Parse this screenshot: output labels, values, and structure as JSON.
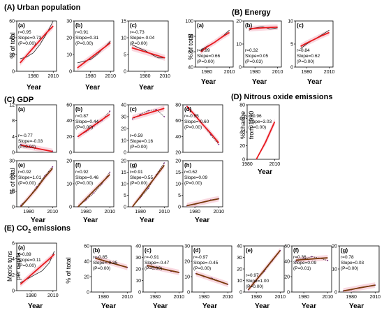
{
  "sections": {
    "A": {
      "title": "(A) Urban population"
    },
    "B": {
      "title": "(B) Energy"
    },
    "C": {
      "title": "(C) GDP"
    },
    "D": {
      "title": "(D) Nitrous oxide emissions"
    },
    "E": {
      "title_prefix": "(E) CO",
      "title_sub": "2",
      "title_suffix": " emissions"
    }
  },
  "axis_titles": {
    "year": "Year",
    "pct_total": "% of total",
    "pct_change_line1": "% change",
    "pct_change_line2": "from 1990",
    "metric_line1": "Metric tons",
    "metric_line2": "per capita"
  },
  "colors": {
    "fit": "#e8191d",
    "fit_dark": "#7a3a0c",
    "observed": "#222222",
    "band": "#f4b8c6",
    "points": "#7a2a8a"
  },
  "chart_data": [
    {
      "id": "A-a",
      "panel": "(a)",
      "type": "line",
      "x": [
        1960,
        1970,
        1980,
        1990,
        2000,
        2010
      ],
      "y_observed": [
        15,
        17,
        22,
        32,
        45,
        60
      ],
      "fit": [
        10,
        19,
        28,
        37,
        46,
        54
      ],
      "ylim": [
        0,
        60
      ],
      "yticks": [
        0,
        20,
        40,
        60
      ],
      "xticks": [
        1980,
        2010
      ],
      "stats": {
        "r": "r=0.95",
        "slope": "Slope=0.73",
        "p": "(P=0.00)"
      }
    },
    {
      "id": "A-b",
      "panel": "(b)",
      "type": "line",
      "x": [
        1960,
        1970,
        1980,
        1990,
        2000,
        2010
      ],
      "y_observed": [
        5,
        6,
        7,
        10,
        14,
        18
      ],
      "fit": [
        2,
        5,
        8,
        11,
        14,
        17
      ],
      "ylim": [
        0,
        30
      ],
      "yticks": [
        0,
        10,
        20,
        30
      ],
      "xticks": [
        1980,
        2010
      ],
      "stats": {
        "r": "r=0.91",
        "slope": "Slope=0.31",
        "p": "(P=0.00)"
      }
    },
    {
      "id": "A-c",
      "panel": "(c)",
      "type": "line",
      "x": [
        1960,
        1970,
        1980,
        1990,
        2000,
        2010
      ],
      "y_observed": [
        8,
        7,
        6.2,
        5,
        4,
        4
      ],
      "fit": [
        7,
        6.4,
        5.8,
        5.2,
        4.6,
        4
      ],
      "ylim": [
        0,
        15
      ],
      "yticks": [
        0,
        5,
        10,
        15
      ],
      "xticks": [
        1980,
        2010
      ],
      "stats": {
        "r": "r=-0.73",
        "slope": "Slope=-0.04",
        "p": "(P=0.00)"
      }
    },
    {
      "id": "B-a",
      "panel": "(a)",
      "type": "line",
      "x": [
        1972,
        1980,
        1990,
        2000,
        2010
      ],
      "y_observed": [
        62,
        67,
        72,
        79,
        88
      ],
      "fit": [
        60,
        66,
        72,
        79,
        85
      ],
      "ylim": [
        40,
        100
      ],
      "yticks": [
        40,
        60,
        80,
        100
      ],
      "xticks": [
        1980,
        2010
      ],
      "stats": {
        "r": "r=0.99",
        "slope": "Slope=0.66",
        "p": "(P=0.00)"
      }
    },
    {
      "id": "B-b",
      "panel": "(b)",
      "type": "line",
      "x": [
        1972,
        1980,
        1990,
        2000,
        2010
      ],
      "y_observed": [
        16,
        17,
        17.5,
        16.5,
        17
      ],
      "fit": [
        16.6,
        16.8,
        17,
        17.2,
        17.3
      ],
      "ylim": [
        0,
        20
      ],
      "yticks": [
        0,
        10,
        20
      ],
      "xticks": [
        1980,
        2010
      ],
      "stats": {
        "r": "r=0.32",
        "slope": "Slope=0.05",
        "p": "(P=0.03)"
      }
    },
    {
      "id": "B-c",
      "panel": "(c)",
      "type": "line",
      "x": [
        1972,
        1980,
        1990,
        2000,
        2010
      ],
      "y_observed": [
        4,
        5,
        6,
        7,
        8
      ],
      "fit": [
        4.5,
        5.2,
        6,
        6.8,
        7.5
      ],
      "ylim": [
        0,
        10
      ],
      "yticks": [
        0,
        5,
        10
      ],
      "xticks": [
        1980,
        2010
      ],
      "stats": {
        "r": "r=0.84",
        "slope": "Slope=0.62",
        "p": "(P=0.00)"
      }
    },
    {
      "id": "C-a",
      "panel": "(a)",
      "type": "scatter",
      "x": [
        1970,
        1980,
        1990,
        2000,
        2010
      ],
      "y_observed": [
        2,
        1.5,
        1,
        0.6,
        0.3
      ],
      "fit": [
        1.8,
        1.4,
        1,
        0.6,
        0.2
      ],
      "ylim": [
        0,
        12
      ],
      "yticks": [
        0,
        4,
        8,
        12
      ],
      "xticks": [],
      "stats": {
        "r": "r=-0.77",
        "slope": "Slope=-0.03",
        "p": "(P=0.00)"
      }
    },
    {
      "id": "C-b",
      "panel": "(b)",
      "type": "scatter",
      "x": [
        1970,
        1980,
        1990,
        2000,
        2010
      ],
      "y_observed": [
        20,
        26,
        33,
        40,
        52
      ],
      "fit": [
        20,
        27,
        34,
        41,
        48
      ],
      "ylim": [
        0,
        60
      ],
      "yticks": [
        0,
        20,
        40,
        60
      ],
      "xticks": [],
      "stats": {
        "r": "r=0.87",
        "slope": "Slope=0.44",
        "p": "(P=0.00)"
      }
    },
    {
      "id": "C-c",
      "panel": "(c)",
      "type": "scatter",
      "x": [
        1970,
        1980,
        1990,
        2000,
        2010
      ],
      "y_observed": [
        28,
        32,
        35,
        36,
        30
      ],
      "fit": [
        29,
        31,
        33,
        35,
        37
      ],
      "ylim": [
        0,
        40
      ],
      "yticks": [
        0,
        10,
        20,
        30,
        40
      ],
      "xticks": [],
      "stats": {
        "r": "r=0.59",
        "slope": "Slope=0.16",
        "p": "(P=0.00)"
      }
    },
    {
      "id": "C-d",
      "panel": "(d)",
      "type": "scatter",
      "x": [
        1970,
        1980,
        1990,
        2000,
        2010
      ],
      "y_observed": [
        78,
        67,
        55,
        42,
        30
      ],
      "fit": [
        78,
        67,
        55,
        44,
        32
      ],
      "ylim": [
        20,
        80
      ],
      "yticks": [
        20,
        40,
        60,
        80
      ],
      "xticks": [],
      "stats": {
        "r": "r=-0.95",
        "slope": "Slope=-0.60",
        "p": "(P=0.00)"
      }
    },
    {
      "id": "C-e",
      "panel": "(e)",
      "type": "scatter",
      "x": [
        1970,
        1980,
        1990,
        2000,
        2010
      ],
      "y_observed": [
        1,
        6,
        13,
        20,
        26
      ],
      "fit": [
        0,
        6,
        12,
        19,
        25
      ],
      "ylim": [
        0,
        30
      ],
      "yticks": [
        0,
        10,
        20,
        30
      ],
      "xticks": [
        1980,
        2010
      ],
      "stats": {
        "r": "r=0.92",
        "slope": "Slope=1.01",
        "p": "(P=0.00)"
      }
    },
    {
      "id": "C-f",
      "panel": "(f)",
      "type": "scatter",
      "x": [
        1970,
        1980,
        1990,
        2000,
        2010
      ],
      "y_observed": [
        0,
        3,
        6,
        10,
        15
      ],
      "fit": [
        0,
        3.5,
        7,
        10.5,
        14
      ],
      "ylim": [
        0,
        20
      ],
      "yticks": [
        0,
        10,
        20
      ],
      "xticks": [
        1980,
        2010
      ],
      "stats": {
        "r": "r=0.92",
        "slope": "Slope=0.46",
        "p": "(P=0.00)"
      }
    },
    {
      "id": "C-g",
      "panel": "(g)",
      "type": "scatter",
      "x": [
        1970,
        1980,
        1990,
        2000,
        2010
      ],
      "y_observed": [
        0,
        4,
        8,
        14,
        19
      ],
      "fit": [
        0,
        4.5,
        9,
        13.5,
        18
      ],
      "ylim": [
        0,
        20
      ],
      "yticks": [
        0,
        5,
        10,
        15,
        20
      ],
      "xticks": [
        1980,
        2010
      ],
      "stats": {
        "r": "r=0.91",
        "slope": "Slope=0.55",
        "p": "(P=0.00)"
      }
    },
    {
      "id": "C-h",
      "panel": "(h)",
      "type": "scatter",
      "x": [
        1970,
        1980,
        1990,
        2000,
        2010
      ],
      "y_observed": [
        0.5,
        1,
        2,
        3,
        3.5
      ],
      "fit": [
        0.5,
        1.2,
        2,
        2.8,
        3.5
      ],
      "ylim": [
        0,
        20
      ],
      "yticks": [
        0,
        5,
        10,
        15,
        20
      ],
      "xticks": [
        1980,
        2010
      ],
      "stats": {
        "r": "r=0.62",
        "slope": "Slope=0.09",
        "p": "(P=0.00)"
      }
    },
    {
      "id": "D",
      "panel": "",
      "type": "line",
      "x": [
        1990,
        2000,
        2010
      ],
      "y_observed": [
        0,
        25,
        55
      ],
      "fit": [
        -5,
        25,
        55
      ],
      "ylim": [
        0,
        80
      ],
      "yticks": [
        0,
        20,
        40,
        60,
        80
      ],
      "xticks": [
        1980,
        2010
      ],
      "stats": {
        "r": "r=0.96",
        "slope": "Slope=3.03",
        "p": "(P=0.00)"
      }
    },
    {
      "id": "E-a",
      "panel": "(a)",
      "type": "line",
      "x": [
        1965,
        1975,
        1985,
        1995,
        2005,
        2012
      ],
      "y_observed": [
        1,
        1.5,
        2,
        2.5,
        3.5,
        5
      ],
      "fit": [
        0.8,
        1.6,
        2.4,
        3.2,
        4,
        4.6
      ],
      "ylim": [
        0,
        6
      ],
      "yticks": [
        0,
        2,
        4,
        6
      ],
      "xticks": [
        1980,
        2010
      ],
      "stats": {
        "r": "r=0.89",
        "slope": "Slope=0.11",
        "p": "(P=0.00)"
      }
    },
    {
      "id": "E-b",
      "panel": "(b)",
      "type": "scatter",
      "x": [
        1970,
        1980,
        1990,
        2000,
        2010
      ],
      "y_observed": [
        44,
        41,
        38,
        35,
        32
      ],
      "fit": [
        44,
        41,
        38,
        35,
        32
      ],
      "ylim": [
        0,
        60
      ],
      "yticks": [
        0,
        20,
        40,
        60
      ],
      "xticks": [
        1980,
        2010
      ],
      "stats": {
        "r": "r=-0.85",
        "slope": "Slope=-0.35",
        "p": "(P=0.00)"
      }
    },
    {
      "id": "E-c",
      "panel": "(c)",
      "type": "scatter",
      "x": [
        1970,
        1980,
        1990,
        2000,
        2010
      ],
      "y_observed": [
        23,
        21,
        20,
        18,
        17
      ],
      "fit": [
        23,
        21.5,
        20,
        18.5,
        17
      ],
      "ylim": [
        0,
        40
      ],
      "yticks": [
        0,
        10,
        20,
        30,
        40
      ],
      "xticks": [
        1980,
        2010
      ],
      "stats": {
        "r": "r=-0.91",
        "slope": "Slope=-0.47",
        "p": "(P=0.00)"
      }
    },
    {
      "id": "E-d",
      "panel": "(d)",
      "type": "scatter",
      "x": [
        1970,
        1980,
        1990,
        2000,
        2010
      ],
      "y_observed": [
        12,
        10,
        9,
        7,
        5
      ],
      "fit": [
        12,
        10.3,
        8.5,
        6.8,
        5
      ],
      "ylim": [
        0,
        30
      ],
      "yticks": [
        0,
        10,
        20,
        30
      ],
      "xticks": [
        1980,
        2010
      ],
      "stats": {
        "r": "r=-0.97",
        "slope": "Slope=-0.45",
        "p": "(P=0.00)"
      }
    },
    {
      "id": "E-e",
      "panel": "(e)",
      "type": "scatter",
      "x": [
        1970,
        1980,
        1990,
        2000,
        2010
      ],
      "y_observed": [
        2,
        10,
        18,
        27,
        36
      ],
      "fit": [
        2,
        10.5,
        19,
        27.5,
        36
      ],
      "ylim": [
        0,
        40
      ],
      "yticks": [
        0,
        10,
        20,
        30,
        40
      ],
      "xticks": [
        1980,
        2010
      ],
      "stats": {
        "r": "r=0.97",
        "slope": "Slope=1.00",
        "p": "(P=0.00)"
      }
    },
    {
      "id": "E-f",
      "panel": "(f)",
      "type": "scatter",
      "x": [
        1970,
        1980,
        1990,
        2000,
        2010
      ],
      "y_observed": [
        40,
        43,
        46,
        44,
        41
      ],
      "fit": [
        41.5,
        42.3,
        43,
        43.8,
        44.5
      ],
      "ylim": [
        0,
        60
      ],
      "yticks": [
        0,
        20,
        40,
        60
      ],
      "xticks": [
        1980,
        2010
      ],
      "stats": {
        "r": "r=0.36",
        "slope": "Slope=0.09",
        "p": "(P=0.01)"
      }
    },
    {
      "id": "E-g",
      "panel": "(g)",
      "type": "scatter",
      "x": [
        1970,
        1980,
        1990,
        2000,
        2010
      ],
      "y_observed": [
        0.5,
        1,
        1.8,
        2.5,
        3
      ],
      "fit": [
        0.5,
        1.1,
        1.8,
        2.4,
        3
      ],
      "ylim": [
        0,
        20
      ],
      "yticks": [
        0,
        10,
        20
      ],
      "xticks": [
        1980,
        2010
      ],
      "stats": {
        "r": "r=0.78",
        "slope": "Slope=0.03",
        "p": "(P=0.00)"
      }
    }
  ]
}
